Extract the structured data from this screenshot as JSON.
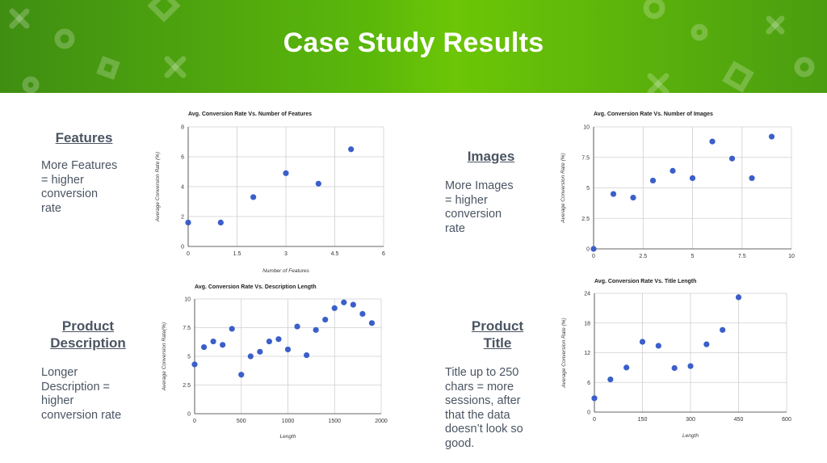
{
  "slide": {
    "title": "Case Study Results"
  },
  "sections": {
    "features": {
      "heading": "Features",
      "text": "More Features\n= higher\nconversion\nrate"
    },
    "images": {
      "heading": "Images",
      "text": "More Images\n= higher\nconversion\nrate"
    },
    "description": {
      "heading": "Product\nDescription",
      "text": "Longer\nDescription =\nhigher\nconversion rate"
    },
    "title": {
      "heading": "Product\nTitle",
      "text": "Title up to 250\nchars = more\nsessions, after\nthat the data\ndoesn’t look so\ngood."
    }
  },
  "chart_data": [
    {
      "type": "scatter",
      "title": "Avg. Conversion Rate Vs. Number of Features",
      "xlabel": "Number of Features",
      "ylabel": "Average Conversion Rate (%)",
      "xlim": [
        0,
        6
      ],
      "ylim": [
        0,
        8
      ],
      "xticks": [
        "0",
        "1.5",
        "3",
        "4.5",
        "6"
      ],
      "yticks": [
        "0",
        "2",
        "4",
        "6",
        "8"
      ],
      "grid": true,
      "x": [
        0,
        1,
        2,
        3,
        4,
        5
      ],
      "y": [
        1.6,
        1.6,
        3.3,
        4.9,
        4.2,
        6.5
      ]
    },
    {
      "type": "scatter",
      "title": "Avg. Conversion Rate Vs. Number of Images",
      "xlabel": "",
      "ylabel": "Average Conversion Rate (%)",
      "xlim": [
        0,
        10
      ],
      "ylim": [
        0,
        10
      ],
      "xticks": [
        "0",
        "2.5",
        "5",
        "7.5",
        "10"
      ],
      "yticks": [
        "0",
        "2.5",
        "5",
        "7.5",
        "10"
      ],
      "grid": true,
      "x": [
        0,
        1,
        2,
        3,
        4,
        5,
        6,
        7,
        8,
        9
      ],
      "y": [
        0,
        4.5,
        4.2,
        5.6,
        6.4,
        5.8,
        8.8,
        7.4,
        5.8,
        9.2
      ]
    },
    {
      "type": "scatter",
      "title": "Avg. Conversion Rate Vs. Description Length",
      "xlabel": "Length",
      "ylabel": "Average Conversion Rate(%)",
      "xlim": [
        0,
        2000
      ],
      "ylim": [
        0,
        10
      ],
      "xticks": [
        "0",
        "500",
        "1000",
        "1500",
        "2000"
      ],
      "yticks": [
        "0",
        "2.5",
        "5",
        "7.5",
        "10"
      ],
      "grid": true,
      "x": [
        0,
        100,
        200,
        300,
        400,
        500,
        600,
        700,
        800,
        900,
        1000,
        1100,
        1200,
        1300,
        1400,
        1500,
        1600,
        1700,
        1800,
        1900
      ],
      "y": [
        4.3,
        5.8,
        6.3,
        6.0,
        7.4,
        3.4,
        5.0,
        5.4,
        6.3,
        6.5,
        5.6,
        7.6,
        5.1,
        7.3,
        8.2,
        9.2,
        9.7,
        9.5,
        8.7,
        7.9
      ]
    },
    {
      "type": "scatter",
      "title": "Avg. Conversion Rate Vs. Title Length",
      "xlabel": "Length",
      "ylabel": "Average Conversion Rate (%)",
      "xlim": [
        0,
        600
      ],
      "ylim": [
        0,
        24
      ],
      "xticks": [
        "0",
        "150",
        "300",
        "450",
        "600"
      ],
      "yticks": [
        "0",
        "6",
        "12",
        "18",
        "24"
      ],
      "grid": true,
      "x": [
        0,
        50,
        100,
        150,
        200,
        250,
        300,
        350,
        400,
        450
      ],
      "y": [
        2.8,
        6.6,
        9.0,
        14.2,
        13.4,
        8.9,
        9.3,
        13.7,
        16.6,
        23.2
      ]
    }
  ]
}
